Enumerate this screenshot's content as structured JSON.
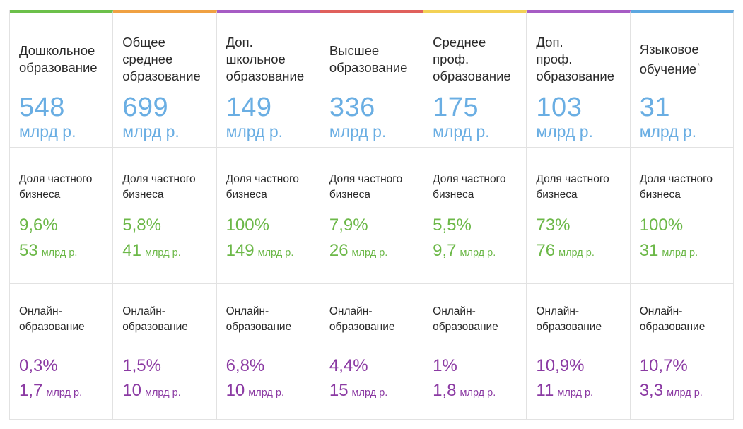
{
  "columns": [
    {
      "title": "Дошкольное\nобразование",
      "accent": "#6cc04a",
      "volume_value": "548",
      "volume_unit": "млрд р.",
      "private_label": "Доля частного\nбизнеса",
      "private_share": "9,6%",
      "private_value": "53",
      "private_unit": "млрд р.",
      "online_label": "Онлайн-\nобразование",
      "online_share": "0,3%",
      "online_value": "1,7",
      "online_unit": "млрд р."
    },
    {
      "title": "Общее\nсреднее\nобразование",
      "accent": "#f0a142",
      "volume_value": "699",
      "volume_unit": "млрд р.",
      "private_label": "Доля частного\nбизнеса",
      "private_share": "5,8%",
      "private_value": "41",
      "private_unit": "млрд р.",
      "online_label": "Онлайн-\nобразование",
      "online_share": "1,5%",
      "online_value": "10",
      "online_unit": "млрд р."
    },
    {
      "title": "Доп.\nшкольное\nобразование",
      "accent": "#a65cc4",
      "volume_value": "149",
      "volume_unit": "млрд р.",
      "private_label": "Доля частного\nбизнеса",
      "private_share": "100%",
      "private_value": "149",
      "private_unit": "млрд р.",
      "online_label": "Онлайн-\nобразование",
      "online_share": "6,8%",
      "online_value": "10",
      "online_unit": "млрд р."
    },
    {
      "title": "Высшее\nобразование",
      "accent": "#e0605c",
      "volume_value": "336",
      "volume_unit": "млрд р.",
      "private_label": "Доля частного\nбизнеса",
      "private_share": "7,9%",
      "private_value": "26",
      "private_unit": "млрд р.",
      "online_label": "Онлайн-\nобразование",
      "online_share": "4,4%",
      "online_value": "15",
      "online_unit": "млрд р."
    },
    {
      "title": "Среднее\nпроф.\nобразование",
      "accent": "#f3d155",
      "volume_value": "175",
      "volume_unit": "млрд р.",
      "private_label": "Доля частного\nбизнеса",
      "private_share": "5,5%",
      "private_value": "9,7",
      "private_unit": "млрд р.",
      "online_label": "Онлайн-\nобразование",
      "online_share": "1%",
      "online_value": "1,8",
      "online_unit": "млрд р."
    },
    {
      "title": "Доп.\nпроф.\nобразование",
      "accent": "#a65cc4",
      "volume_value": "103",
      "volume_unit": "млрд р.",
      "private_label": "Доля частного\nбизнеса",
      "private_share": "73%",
      "private_value": "76",
      "private_unit": "млрд р.",
      "online_label": "Онлайн-\nобразование",
      "online_share": "10,9%",
      "online_value": "11",
      "online_unit": "млрд р."
    },
    {
      "title": "Языковое\nобучение",
      "title_mark": "*",
      "accent": "#5ca7e0",
      "volume_value": "31",
      "volume_unit": "млрд р.",
      "private_label": "Доля частного\nбизнеса",
      "private_share": "100%",
      "private_value": "31",
      "private_unit": "млрд р.",
      "online_label": "Онлайн-\nобразование",
      "online_share": "10,7%",
      "online_value": "3,3",
      "online_unit": "млрд р."
    }
  ]
}
